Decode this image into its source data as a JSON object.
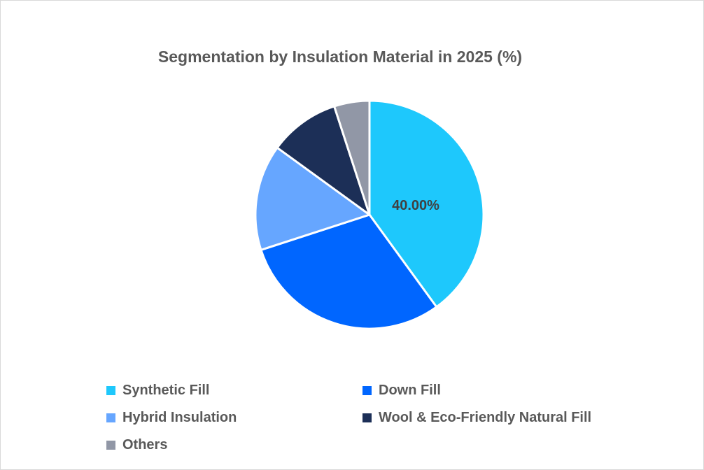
{
  "chart_data": {
    "type": "pie",
    "title": "Segmentation by Insulation Material in 2025 (%)",
    "categories": [
      "Synthetic Fill",
      "Down Fill",
      "Hybrid Insulation",
      "Wool & Eco-Friendly Natural Fill",
      "Others"
    ],
    "values": [
      40,
      30,
      15,
      10,
      5
    ],
    "unit": "%",
    "colors": [
      "#1ec8fc",
      "#0066ff",
      "#66a6ff",
      "#1c2f57",
      "#9197a6"
    ],
    "data_labels": [
      {
        "category": "Synthetic Fill",
        "text": "40.00%"
      }
    ],
    "start_angle_deg": 0,
    "direction": "clockwise",
    "legend_position": "bottom"
  },
  "title": "Segmentation by Insulation Material in 2025 (%)",
  "legend": [
    {
      "label": "Synthetic Fill",
      "color": "#1ec8fc"
    },
    {
      "label": "Down Fill",
      "color": "#0066ff"
    },
    {
      "label": "Hybrid Insulation",
      "color": "#66a6ff"
    },
    {
      "label": "Wool & Eco-Friendly Natural Fill",
      "color": "#1c2f57"
    },
    {
      "label": "Others",
      "color": "#9197a6"
    }
  ],
  "labels": {
    "synthetic": "40.00%"
  }
}
